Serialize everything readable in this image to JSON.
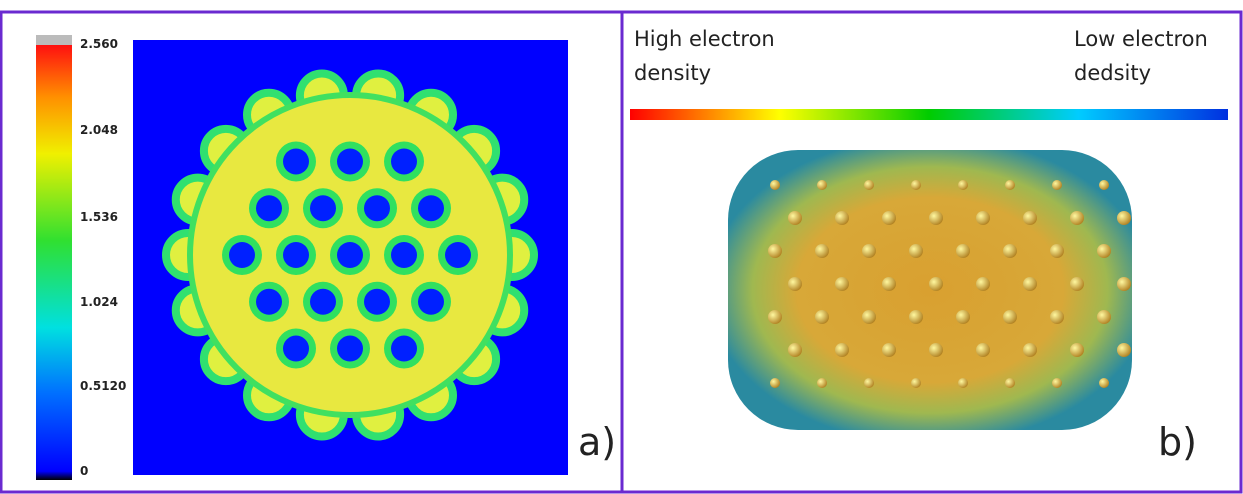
{
  "panel_a": {
    "colorbar_ticks": [
      "2.560",
      "2.048",
      "1.536",
      "1.024",
      "0.5120",
      "0"
    ],
    "label": "a)"
  },
  "panel_b": {
    "high_label": "High electron density",
    "low_label": "Low electron dedsity",
    "label": "b)"
  }
}
